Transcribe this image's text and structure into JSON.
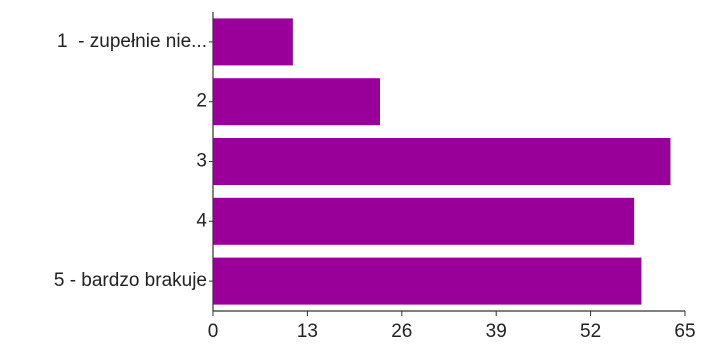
{
  "chart_data": {
    "type": "bar",
    "orientation": "horizontal",
    "categories": [
      "1  - zupełnie nie...",
      "2",
      "3",
      "4",
      "5 - bardzo brakuje"
    ],
    "values": [
      11,
      23,
      63,
      58,
      59
    ],
    "xlim": [
      0,
      65
    ],
    "x_ticks": [
      "0",
      "13",
      "26",
      "39",
      "52",
      "65"
    ],
    "title": "",
    "xlabel": "",
    "ylabel": "",
    "grid": false,
    "legend": "none",
    "bar_color": "#990099",
    "axis_color": "#333333"
  }
}
